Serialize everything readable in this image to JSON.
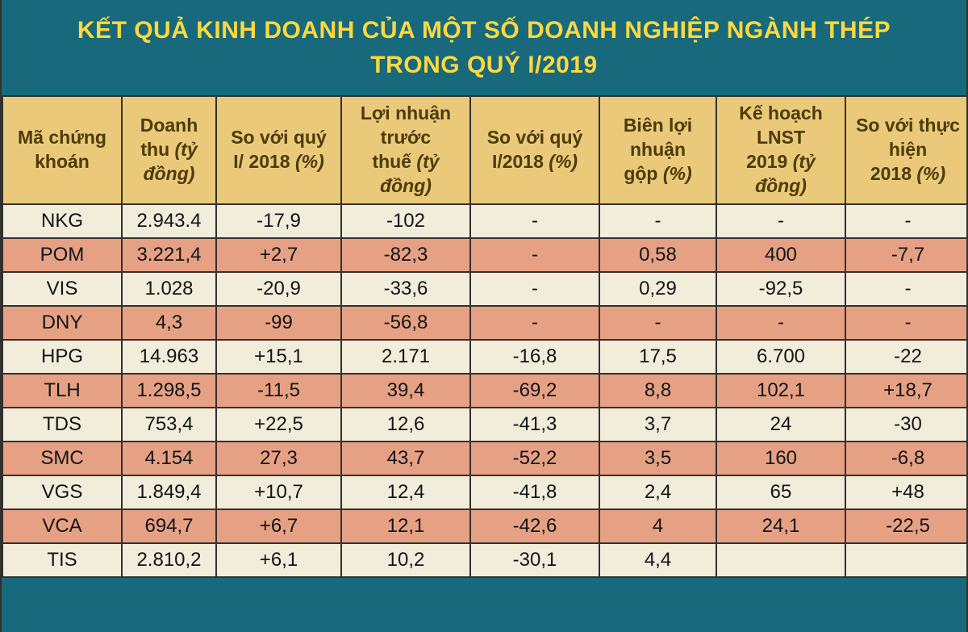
{
  "title": {
    "line1": "KẾT QUẢ KINH DOANH CỦA MỘT SỐ DOANH NGHIỆP NGÀNH THÉP",
    "line2": "TRONG QUÝ I/2019"
  },
  "colors": {
    "title_bg": "#17697b",
    "title_text": "#ffd83f",
    "header_bg": "#ebc97b",
    "header_text": "#4c3b05",
    "row_even_bg": "#f2ecdb",
    "row_odd_bg": "#e6a185",
    "border": "#33312e",
    "body_text": "#141414"
  },
  "chart_data": {
    "type": "table",
    "title": "KẾT QUẢ KINH DOANH CỦA MỘT SỐ DOANH NGHIỆP NGÀNH THÉP TRONG QUÝ I/2019",
    "columns": [
      {
        "label": "Mã chứng khoán",
        "unit": ""
      },
      {
        "label": "Doanh thu",
        "unit": "(tỷ đồng)"
      },
      {
        "label": "So với quý I/ 2018",
        "unit": "(%)"
      },
      {
        "label": "Lợi nhuận trước thuế",
        "unit": "(tỷ đồng)"
      },
      {
        "label": "So với quý I/2018",
        "unit": "(%)"
      },
      {
        "label": "Biên lợi nhuận gộp",
        "unit": "(%)"
      },
      {
        "label": "Kế hoạch LNST 2019",
        "unit": "(tỷ đồng)"
      },
      {
        "label": "So với thực hiện 2018",
        "unit": "(%)"
      }
    ],
    "rows": [
      [
        "NKG",
        "2.943.4",
        "-17,9",
        "-102",
        "-",
        "-",
        "-",
        "-"
      ],
      [
        "POM",
        "3.221,4",
        "+2,7",
        "-82,3",
        "-",
        "0,58",
        "400",
        "-7,7"
      ],
      [
        "VIS",
        "1.028",
        "-20,9",
        "-33,6",
        "-",
        "0,29",
        "-92,5",
        "-"
      ],
      [
        "DNY",
        "4,3",
        "-99",
        "-56,8",
        "-",
        "-",
        "-",
        "-"
      ],
      [
        "HPG",
        "14.963",
        "+15,1",
        "2.171",
        "-16,8",
        "17,5",
        "6.700",
        "-22"
      ],
      [
        "TLH",
        "1.298,5",
        "-11,5",
        "39,4",
        "-69,2",
        "8,8",
        "102,1",
        "+18,7"
      ],
      [
        "TDS",
        "753,4",
        "+22,5",
        "12,6",
        "-41,3",
        "3,7",
        "24",
        "-30"
      ],
      [
        "SMC",
        "4.154",
        "27,3",
        "43,7",
        "-52,2",
        "3,5",
        "160",
        "-6,8"
      ],
      [
        "VGS",
        "1.849,4",
        "+10,7",
        "12,4",
        "-41,8",
        "2,4",
        "65",
        "+48"
      ],
      [
        "VCA",
        "694,7",
        "+6,7",
        "12,1",
        "-42,6",
        "4",
        "24,1",
        "-22,5"
      ],
      [
        "TIS",
        "2.810,2",
        "+6,1",
        "10,2",
        "-30,1",
        "4,4",
        "",
        ""
      ]
    ]
  }
}
